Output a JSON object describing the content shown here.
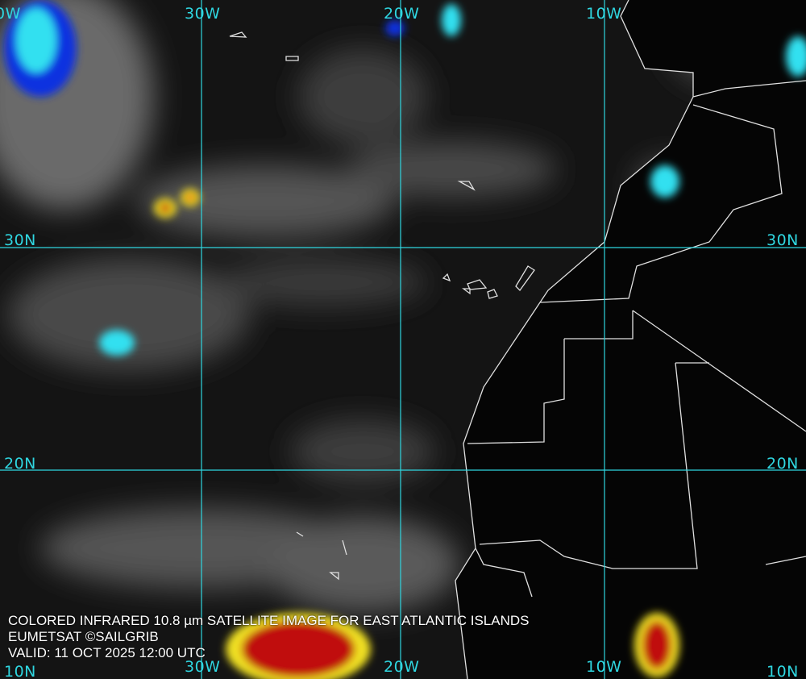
{
  "caption": {
    "title": "COLORED INFRARED 10.8 µm SATELLITE IMAGE FOR EAST ATLANTIC ISLANDS",
    "credit": "EUMETSAT ©SAILGRIB",
    "valid": "VALID:  11 OCT 2025 12:00 UTC"
  },
  "grid": {
    "color": "#2fd6e0",
    "longitudes_top": [
      "0W",
      "30W",
      "20W",
      "10W"
    ],
    "longitudes_bottom": [
      "30W",
      "20W",
      "10W"
    ],
    "latitudes_left": [
      "30N",
      "20N",
      "10N"
    ],
    "latitudes_right": [
      "30N",
      "20N",
      "10N"
    ]
  },
  "colors": {
    "cold_cloud_red": "#c01010",
    "cold_cloud_yellow": "#f0e020",
    "cold_cloud_cyan": "#30e0f0",
    "cold_cloud_blue": "#1030e0",
    "coastline": "#e0e0e0"
  }
}
